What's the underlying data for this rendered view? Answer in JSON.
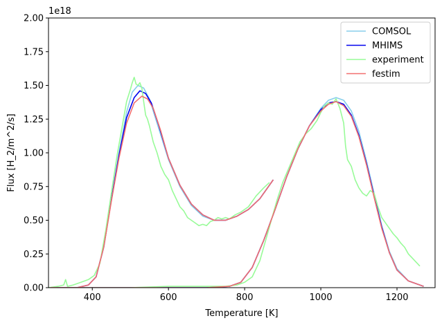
{
  "chart_data": {
    "type": "line",
    "xlabel": "Temperature [K]",
    "ylabel": "Flux [H_2/m^2/s]",
    "offset_text": "1e18",
    "xlim": [
      285,
      1300
    ],
    "ylim": [
      0,
      2.0
    ],
    "y_scale_factor": 1e+18,
    "x_ticks": [
      400,
      600,
      800,
      1000,
      1200
    ],
    "y_ticks": [
      0.0,
      0.25,
      0.5,
      0.75,
      1.0,
      1.25,
      1.5,
      1.75,
      2.0
    ],
    "x_tick_labels": [
      "400",
      "600",
      "800",
      "1000",
      "1200"
    ],
    "y_tick_labels": [
      "0.00",
      "0.25",
      "0.50",
      "0.75",
      "1.00",
      "1.25",
      "1.50",
      "1.75",
      "2.00"
    ],
    "grid": false,
    "legend_position": "top-right",
    "series": [
      {
        "name": "COMSOL",
        "color": "#87ceeb",
        "segments": [
          [
            [
              290,
              0
            ],
            [
              360,
              0.0
            ],
            [
              390,
              0.02
            ],
            [
              410,
              0.08
            ],
            [
              430,
              0.3
            ],
            [
              450,
              0.65
            ],
            [
              470,
              1.0
            ],
            [
              490,
              1.3
            ],
            [
              505,
              1.45
            ],
            [
              520,
              1.5
            ],
            [
              535,
              1.48
            ],
            [
              550,
              1.4
            ],
            [
              570,
              1.22
            ],
            [
              600,
              0.95
            ],
            [
              630,
              0.75
            ],
            [
              660,
              0.61
            ],
            [
              690,
              0.53
            ],
            [
              720,
              0.5
            ],
            [
              750,
              0.5
            ],
            [
              780,
              0.53
            ],
            [
              810,
              0.58
            ],
            [
              840,
              0.66
            ],
            [
              875,
              0.8
            ]
          ],
          [
            [
              290,
              0
            ],
            [
              700,
              0.0
            ],
            [
              760,
              0.01
            ],
            [
              790,
              0.04
            ],
            [
              820,
              0.15
            ],
            [
              850,
              0.35
            ],
            [
              880,
              0.58
            ],
            [
              910,
              0.82
            ],
            [
              940,
              1.03
            ],
            [
              970,
              1.2
            ],
            [
              1000,
              1.33
            ],
            [
              1020,
              1.39
            ],
            [
              1040,
              1.41
            ],
            [
              1060,
              1.39
            ],
            [
              1080,
              1.31
            ],
            [
              1100,
              1.16
            ],
            [
              1120,
              0.94
            ],
            [
              1140,
              0.7
            ],
            [
              1160,
              0.46
            ],
            [
              1180,
              0.27
            ],
            [
              1200,
              0.14
            ],
            [
              1230,
              0.05
            ],
            [
              1270,
              0.01
            ]
          ]
        ]
      },
      {
        "name": "MHIMS",
        "color": "#0000ee",
        "segments": [
          [
            [
              290,
              0
            ],
            [
              360,
              0.0
            ],
            [
              390,
              0.02
            ],
            [
              410,
              0.08
            ],
            [
              430,
              0.3
            ],
            [
              450,
              0.65
            ],
            [
              470,
              0.98
            ],
            [
              490,
              1.26
            ],
            [
              510,
              1.41
            ],
            [
              525,
              1.46
            ],
            [
              540,
              1.44
            ],
            [
              555,
              1.37
            ],
            [
              575,
              1.2
            ],
            [
              600,
              0.96
            ],
            [
              630,
              0.76
            ],
            [
              660,
              0.62
            ],
            [
              690,
              0.54
            ],
            [
              720,
              0.5
            ],
            [
              750,
              0.5
            ],
            [
              780,
              0.53
            ],
            [
              810,
              0.58
            ],
            [
              840,
              0.66
            ],
            [
              875,
              0.8
            ]
          ],
          [
            [
              290,
              0
            ],
            [
              700,
              0.0
            ],
            [
              760,
              0.01
            ],
            [
              790,
              0.04
            ],
            [
              820,
              0.15
            ],
            [
              850,
              0.35
            ],
            [
              880,
              0.58
            ],
            [
              910,
              0.82
            ],
            [
              940,
              1.03
            ],
            [
              970,
              1.2
            ],
            [
              1000,
              1.32
            ],
            [
              1020,
              1.37
            ],
            [
              1040,
              1.38
            ],
            [
              1060,
              1.36
            ],
            [
              1080,
              1.28
            ],
            [
              1100,
              1.13
            ],
            [
              1120,
              0.92
            ],
            [
              1140,
              0.68
            ],
            [
              1160,
              0.45
            ],
            [
              1180,
              0.26
            ],
            [
              1200,
              0.13
            ],
            [
              1230,
              0.05
            ],
            [
              1270,
              0.01
            ]
          ]
        ]
      },
      {
        "name": "experiment",
        "color": "#98fb98",
        "segments": [
          [
            [
              285,
              0.0
            ],
            [
              310,
              0.01
            ],
            [
              325,
              0.02
            ],
            [
              330,
              0.06
            ],
            [
              335,
              0.01
            ],
            [
              350,
              0.02
            ],
            [
              370,
              0.04
            ],
            [
              390,
              0.06
            ],
            [
              405,
              0.09
            ],
            [
              420,
              0.18
            ],
            [
              435,
              0.42
            ],
            [
              450,
              0.7
            ],
            [
              465,
              0.98
            ],
            [
              480,
              1.22
            ],
            [
              490,
              1.38
            ],
            [
              500,
              1.47
            ],
            [
              505,
              1.52
            ],
            [
              510,
              1.56
            ],
            [
              515,
              1.51
            ],
            [
              520,
              1.5
            ],
            [
              525,
              1.52
            ],
            [
              530,
              1.48
            ],
            [
              535,
              1.38
            ],
            [
              540,
              1.28
            ],
            [
              545,
              1.25
            ],
            [
              550,
              1.2
            ],
            [
              560,
              1.08
            ],
            [
              570,
              1.0
            ],
            [
              580,
              0.9
            ],
            [
              590,
              0.84
            ],
            [
              600,
              0.8
            ],
            [
              610,
              0.72
            ],
            [
              620,
              0.66
            ],
            [
              630,
              0.6
            ],
            [
              640,
              0.57
            ],
            [
              650,
              0.52
            ],
            [
              660,
              0.5
            ],
            [
              670,
              0.48
            ],
            [
              680,
              0.46
            ],
            [
              690,
              0.47
            ],
            [
              700,
              0.46
            ],
            [
              710,
              0.49
            ],
            [
              720,
              0.5
            ],
            [
              730,
              0.52
            ],
            [
              740,
              0.51
            ],
            [
              750,
              0.52
            ],
            [
              760,
              0.51
            ],
            [
              775,
              0.54
            ],
            [
              790,
              0.56
            ],
            [
              810,
              0.6
            ],
            [
              830,
              0.68
            ],
            [
              850,
              0.74
            ],
            [
              865,
              0.78
            ]
          ],
          [
            [
              285,
              0.0
            ],
            [
              400,
              0.0
            ],
            [
              500,
              0.0
            ],
            [
              600,
              0.01
            ],
            [
              700,
              0.01
            ],
            [
              750,
              0.01
            ],
            [
              780,
              0.02
            ],
            [
              800,
              0.04
            ],
            [
              820,
              0.08
            ],
            [
              840,
              0.2
            ],
            [
              855,
              0.35
            ],
            [
              870,
              0.5
            ],
            [
              885,
              0.65
            ],
            [
              900,
              0.78
            ],
            [
              915,
              0.88
            ],
            [
              930,
              0.98
            ],
            [
              945,
              1.08
            ],
            [
              960,
              1.14
            ],
            [
              975,
              1.18
            ],
            [
              990,
              1.24
            ],
            [
              1000,
              1.3
            ],
            [
              1010,
              1.35
            ],
            [
              1020,
              1.37
            ],
            [
              1030,
              1.36
            ],
            [
              1040,
              1.4
            ],
            [
              1050,
              1.33
            ],
            [
              1060,
              1.22
            ],
            [
              1065,
              1.05
            ],
            [
              1070,
              0.95
            ],
            [
              1080,
              0.9
            ],
            [
              1090,
              0.8
            ],
            [
              1100,
              0.74
            ],
            [
              1110,
              0.7
            ],
            [
              1120,
              0.68
            ],
            [
              1130,
              0.72
            ],
            [
              1140,
              0.7
            ],
            [
              1150,
              0.6
            ],
            [
              1160,
              0.52
            ],
            [
              1170,
              0.48
            ],
            [
              1180,
              0.44
            ],
            [
              1190,
              0.4
            ],
            [
              1200,
              0.37
            ],
            [
              1210,
              0.33
            ],
            [
              1220,
              0.3
            ],
            [
              1230,
              0.25
            ],
            [
              1240,
              0.22
            ],
            [
              1250,
              0.19
            ],
            [
              1260,
              0.16
            ]
          ]
        ]
      },
      {
        "name": "festim",
        "color": "#f26e6e",
        "segments": [
          [
            [
              290,
              0
            ],
            [
              360,
              0.0
            ],
            [
              390,
              0.02
            ],
            [
              410,
              0.08
            ],
            [
              430,
              0.3
            ],
            [
              450,
              0.64
            ],
            [
              470,
              0.96
            ],
            [
              490,
              1.22
            ],
            [
              510,
              1.37
            ],
            [
              530,
              1.42
            ],
            [
              545,
              1.4
            ],
            [
              560,
              1.33
            ],
            [
              580,
              1.16
            ],
            [
              600,
              0.96
            ],
            [
              630,
              0.76
            ],
            [
              660,
              0.62
            ],
            [
              690,
              0.54
            ],
            [
              720,
              0.5
            ],
            [
              750,
              0.5
            ],
            [
              780,
              0.53
            ],
            [
              810,
              0.58
            ],
            [
              840,
              0.66
            ],
            [
              875,
              0.8
            ]
          ],
          [
            [
              290,
              0
            ],
            [
              700,
              0.0
            ],
            [
              760,
              0.01
            ],
            [
              790,
              0.04
            ],
            [
              820,
              0.15
            ],
            [
              850,
              0.35
            ],
            [
              880,
              0.58
            ],
            [
              910,
              0.82
            ],
            [
              940,
              1.03
            ],
            [
              970,
              1.2
            ],
            [
              1000,
              1.31
            ],
            [
              1020,
              1.36
            ],
            [
              1040,
              1.38
            ],
            [
              1060,
              1.35
            ],
            [
              1080,
              1.27
            ],
            [
              1100,
              1.12
            ],
            [
              1120,
              0.91
            ],
            [
              1140,
              0.67
            ],
            [
              1160,
              0.44
            ],
            [
              1180,
              0.26
            ],
            [
              1200,
              0.13
            ],
            [
              1230,
              0.05
            ],
            [
              1270,
              0.01
            ]
          ]
        ]
      }
    ]
  }
}
